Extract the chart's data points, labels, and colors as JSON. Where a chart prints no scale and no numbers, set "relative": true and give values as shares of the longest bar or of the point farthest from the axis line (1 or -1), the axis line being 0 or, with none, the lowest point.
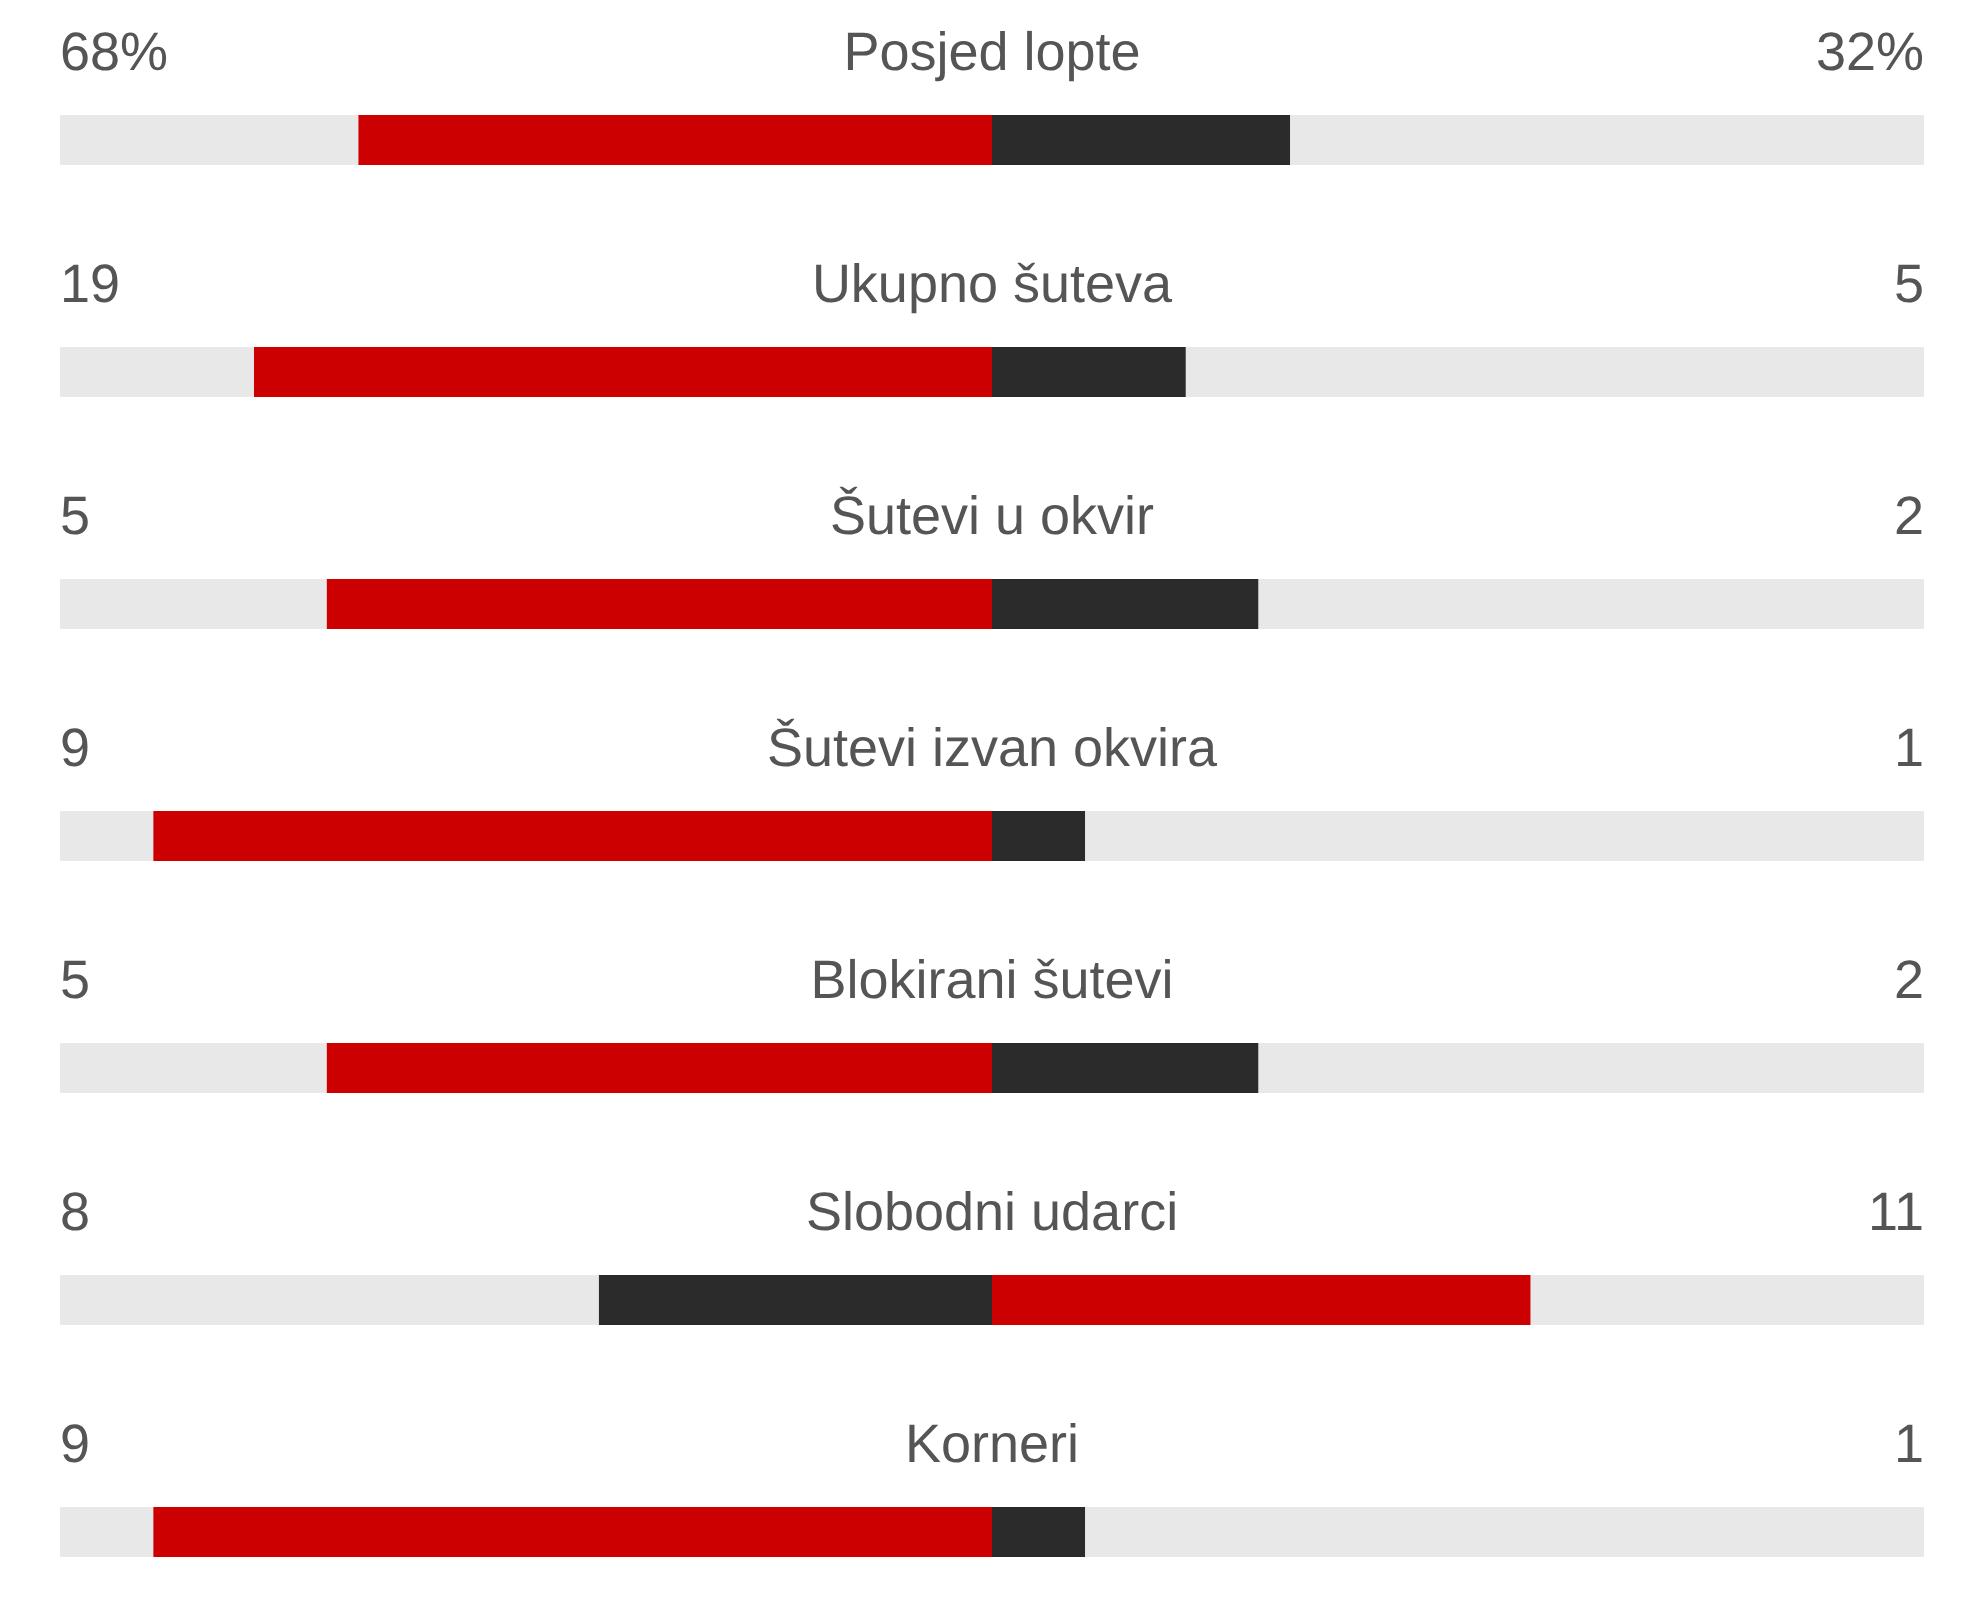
{
  "chart_data": {
    "type": "bar",
    "orientation": "horizontal",
    "stacked": true,
    "relative": true,
    "categories": [
      "Posjed lopte",
      "Ukupno šuteva",
      "Šutevi u okvir",
      "Šutevi izvan okvira",
      "Blokirani šutevi",
      "Slobodni udarci",
      "Korneri"
    ],
    "series": [
      {
        "color": "#e8e8e8",
        "values": [
          0.16,
          0.104,
          0.143,
          0.05,
          0.143,
          0.289,
          0.05
        ]
      },
      {
        "colors": [
          "#cc0000",
          "#cc0000",
          "#cc0000",
          "#cc0000",
          "#cc0000",
          "#2b2b2b",
          "#cc0000"
        ],
        "values": [
          0.34,
          0.396,
          0.357,
          0.45,
          0.357,
          0.211,
          0.45
        ]
      },
      {
        "colors": [
          "#2b2b2b",
          "#2b2b2b",
          "#2b2b2b",
          "#2b2b2b",
          "#2b2b2b",
          "#cc0000",
          "#2b2b2b"
        ],
        "values": [
          0.16,
          0.104,
          0.143,
          0.05,
          0.143,
          0.289,
          0.05
        ]
      },
      {
        "color": "#e8e8e8",
        "values": [
          0.34,
          0.396,
          0.357,
          0.45,
          0.357,
          0.211,
          0.45
        ]
      }
    ],
    "annotations": [
      "68%",
      "32%",
      "19",
      "5",
      "5",
      "2",
      "9",
      "1",
      "5",
      "2",
      "8",
      "11",
      "9",
      "1"
    ]
  }
}
